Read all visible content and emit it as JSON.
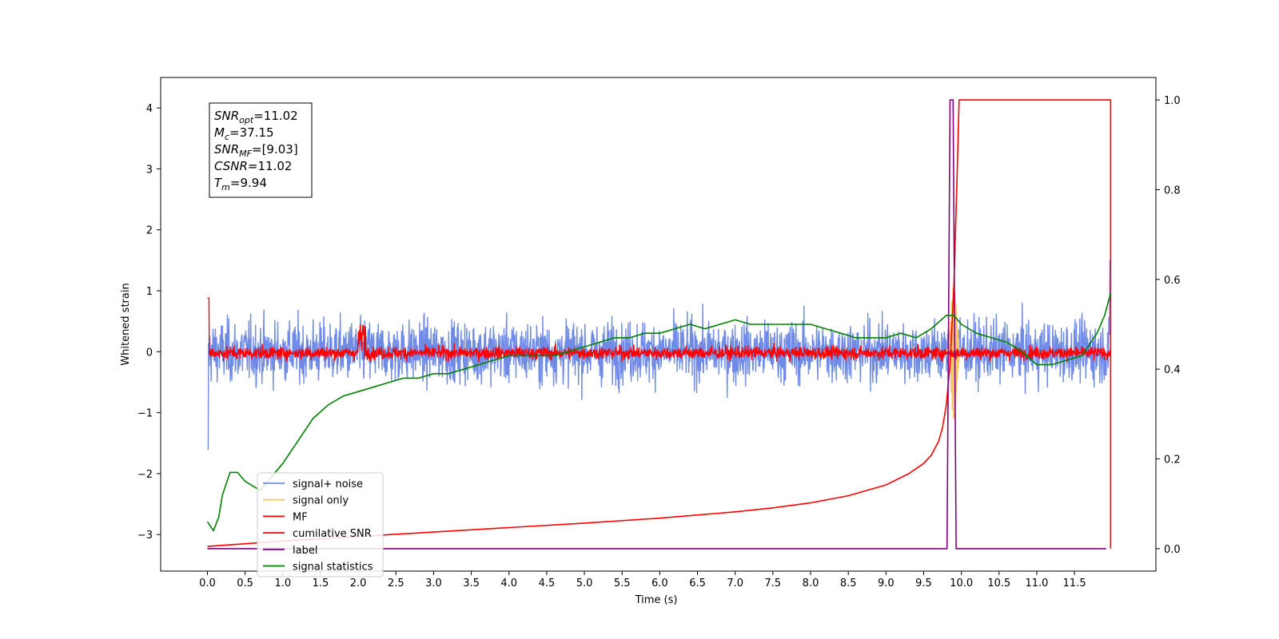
{
  "chart_data": {
    "type": "line",
    "xlabel": "Time (s)",
    "ylabel": "Whitened strain",
    "xlim": [
      -0.62,
      12.58
    ],
    "ylim": [
      -3.6,
      4.5
    ],
    "y2lim": [
      -0.05,
      1.05
    ],
    "x_ticks": [
      "0.0",
      "0.5",
      "1.0",
      "1.5",
      "2.0",
      "2.5",
      "3.0",
      "3.5",
      "4.0",
      "4.5",
      "5.0",
      "5.5",
      "6.0",
      "6.5",
      "7.0",
      "7.5",
      "8.0",
      "8.5",
      "9.0",
      "9.5",
      "10.0",
      "10.5",
      "11.0",
      "11.5"
    ],
    "y_ticks": [
      "−3",
      "−2",
      "−1",
      "0",
      "1",
      "2",
      "3",
      "4"
    ],
    "y2_ticks": [
      "0.0",
      "0.2",
      "0.4",
      "0.6",
      "0.8",
      "1.0"
    ],
    "grid": false,
    "legend_position": "lower-left",
    "info_box": {
      "lines": [
        {
          "sym": "SNR",
          "sub": "opt",
          "value": "=11.02"
        },
        {
          "sym": "M",
          "sub": "c",
          "value": "=37.15"
        },
        {
          "sym": "SNR",
          "sub": "MF",
          "value": "=[9.03]"
        },
        {
          "sym": "CSNR",
          "sub": "",
          "value": "=11.02"
        },
        {
          "sym": "T",
          "sub": "m",
          "value": "=9.94"
        }
      ]
    },
    "series": [
      {
        "name": "signal+ noise",
        "color": "#6f8be6",
        "axis": "left",
        "kind": "noise",
        "amplitude": 0.6,
        "x_range": [
          0,
          11.98
        ]
      },
      {
        "name": "signal only",
        "color": "#f5c86a",
        "axis": "left",
        "kind": "chirp",
        "x_range": [
          9.8,
          9.97
        ]
      },
      {
        "name": "MF",
        "color": "#ff0000",
        "axis": "left",
        "kind": "noise",
        "amplitude": 0.12,
        "x_range": [
          0,
          11.98
        ]
      },
      {
        "name": "cumilative SNR",
        "color": "#ff0000",
        "axis": "right",
        "x": [
          0.0,
          1.0,
          2.0,
          3.0,
          4.0,
          5.0,
          6.0,
          7.0,
          7.5,
          8.0,
          8.5,
          9.0,
          9.3,
          9.5,
          9.6,
          9.7,
          9.75,
          9.8,
          9.85,
          9.9,
          9.94,
          9.97,
          11.98,
          11.98
        ],
        "values": [
          0.005,
          0.017,
          0.027,
          0.037,
          0.047,
          0.057,
          0.068,
          0.082,
          0.091,
          0.102,
          0.118,
          0.142,
          0.167,
          0.19,
          0.208,
          0.24,
          0.27,
          0.32,
          0.41,
          0.58,
          0.81,
          1.0,
          1.0,
          0.0
        ]
      },
      {
        "name": "label",
        "color": "#800080",
        "axis": "right",
        "x": [
          0.0,
          9.81,
          9.85,
          9.89,
          9.93,
          9.98,
          11.92
        ],
        "values": [
          0.0,
          0.0,
          1.0,
          1.0,
          0.0,
          0.0,
          0.0
        ]
      },
      {
        "name": "signal statistics",
        "color": "#008000",
        "axis": "right",
        "x": [
          0.0,
          0.08,
          0.15,
          0.2,
          0.3,
          0.4,
          0.5,
          0.6,
          0.7,
          0.8,
          1.0,
          1.2,
          1.4,
          1.6,
          1.8,
          2.0,
          2.2,
          2.4,
          2.6,
          2.8,
          3.0,
          3.2,
          3.4,
          3.6,
          3.8,
          4.0,
          4.3,
          4.6,
          4.8,
          5.0,
          5.2,
          5.4,
          5.6,
          5.8,
          6.0,
          6.2,
          6.4,
          6.6,
          6.8,
          7.0,
          7.2,
          7.4,
          7.6,
          7.8,
          8.0,
          8.2,
          8.4,
          8.6,
          8.8,
          9.0,
          9.2,
          9.4,
          9.6,
          9.8,
          9.9,
          10.0,
          10.2,
          10.4,
          10.6,
          10.8,
          11.0,
          11.2,
          11.4,
          11.6,
          11.8,
          11.9,
          11.98
        ],
        "values": [
          0.06,
          0.04,
          0.07,
          0.12,
          0.17,
          0.17,
          0.15,
          0.14,
          0.13,
          0.15,
          0.19,
          0.24,
          0.29,
          0.32,
          0.34,
          0.35,
          0.36,
          0.37,
          0.38,
          0.38,
          0.39,
          0.39,
          0.4,
          0.41,
          0.42,
          0.43,
          0.43,
          0.43,
          0.44,
          0.45,
          0.46,
          0.47,
          0.47,
          0.48,
          0.48,
          0.49,
          0.5,
          0.49,
          0.5,
          0.51,
          0.5,
          0.5,
          0.5,
          0.5,
          0.5,
          0.49,
          0.48,
          0.47,
          0.47,
          0.47,
          0.48,
          0.47,
          0.49,
          0.52,
          0.52,
          0.5,
          0.48,
          0.47,
          0.46,
          0.44,
          0.41,
          0.41,
          0.42,
          0.43,
          0.48,
          0.52,
          0.57
        ]
      }
    ]
  }
}
